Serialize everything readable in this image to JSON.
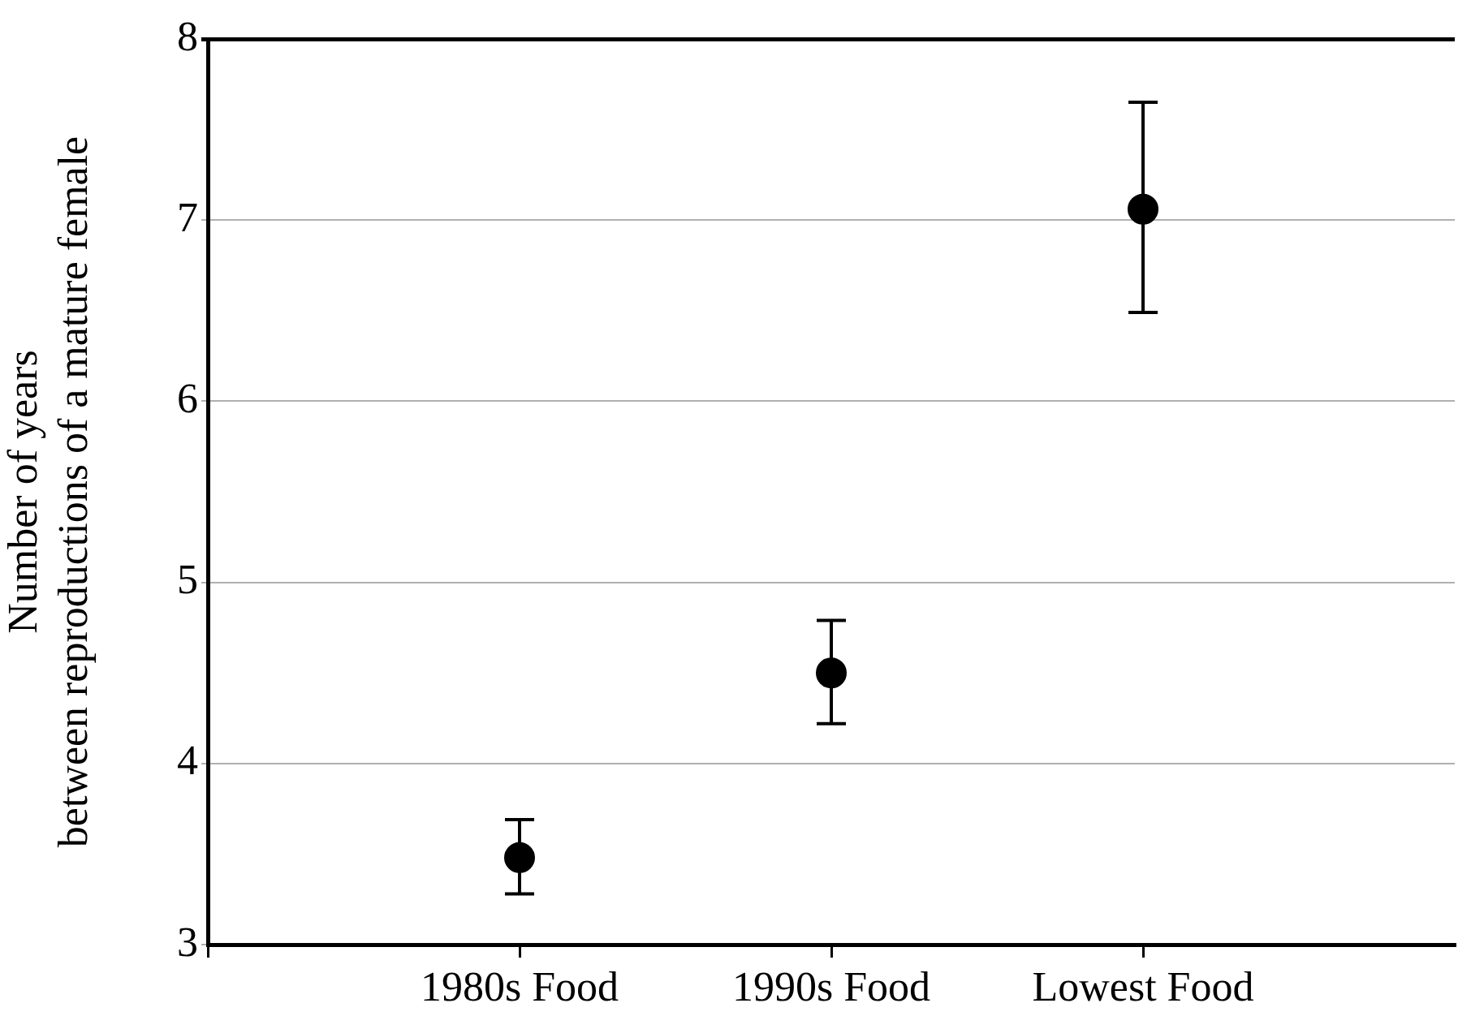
{
  "chart_data": {
    "type": "scatter",
    "ylabel": "Number of years\nbetween reproductions of a mature female",
    "categories": [
      "1980s Food",
      "1990s Food",
      "Lowest Food"
    ],
    "series": [
      {
        "color": "#000000",
        "values": [
          3.48,
          4.5,
          7.06
        ],
        "errors": [
          [
            3.28,
            3.69
          ],
          [
            4.22,
            4.79
          ],
          [
            6.49,
            7.65
          ]
        ]
      }
    ],
    "ylim": [
      3,
      8
    ],
    "yticks": [
      3,
      4,
      5,
      6,
      7,
      8
    ],
    "grid": "y",
    "marker": "circle",
    "legend": false
  }
}
